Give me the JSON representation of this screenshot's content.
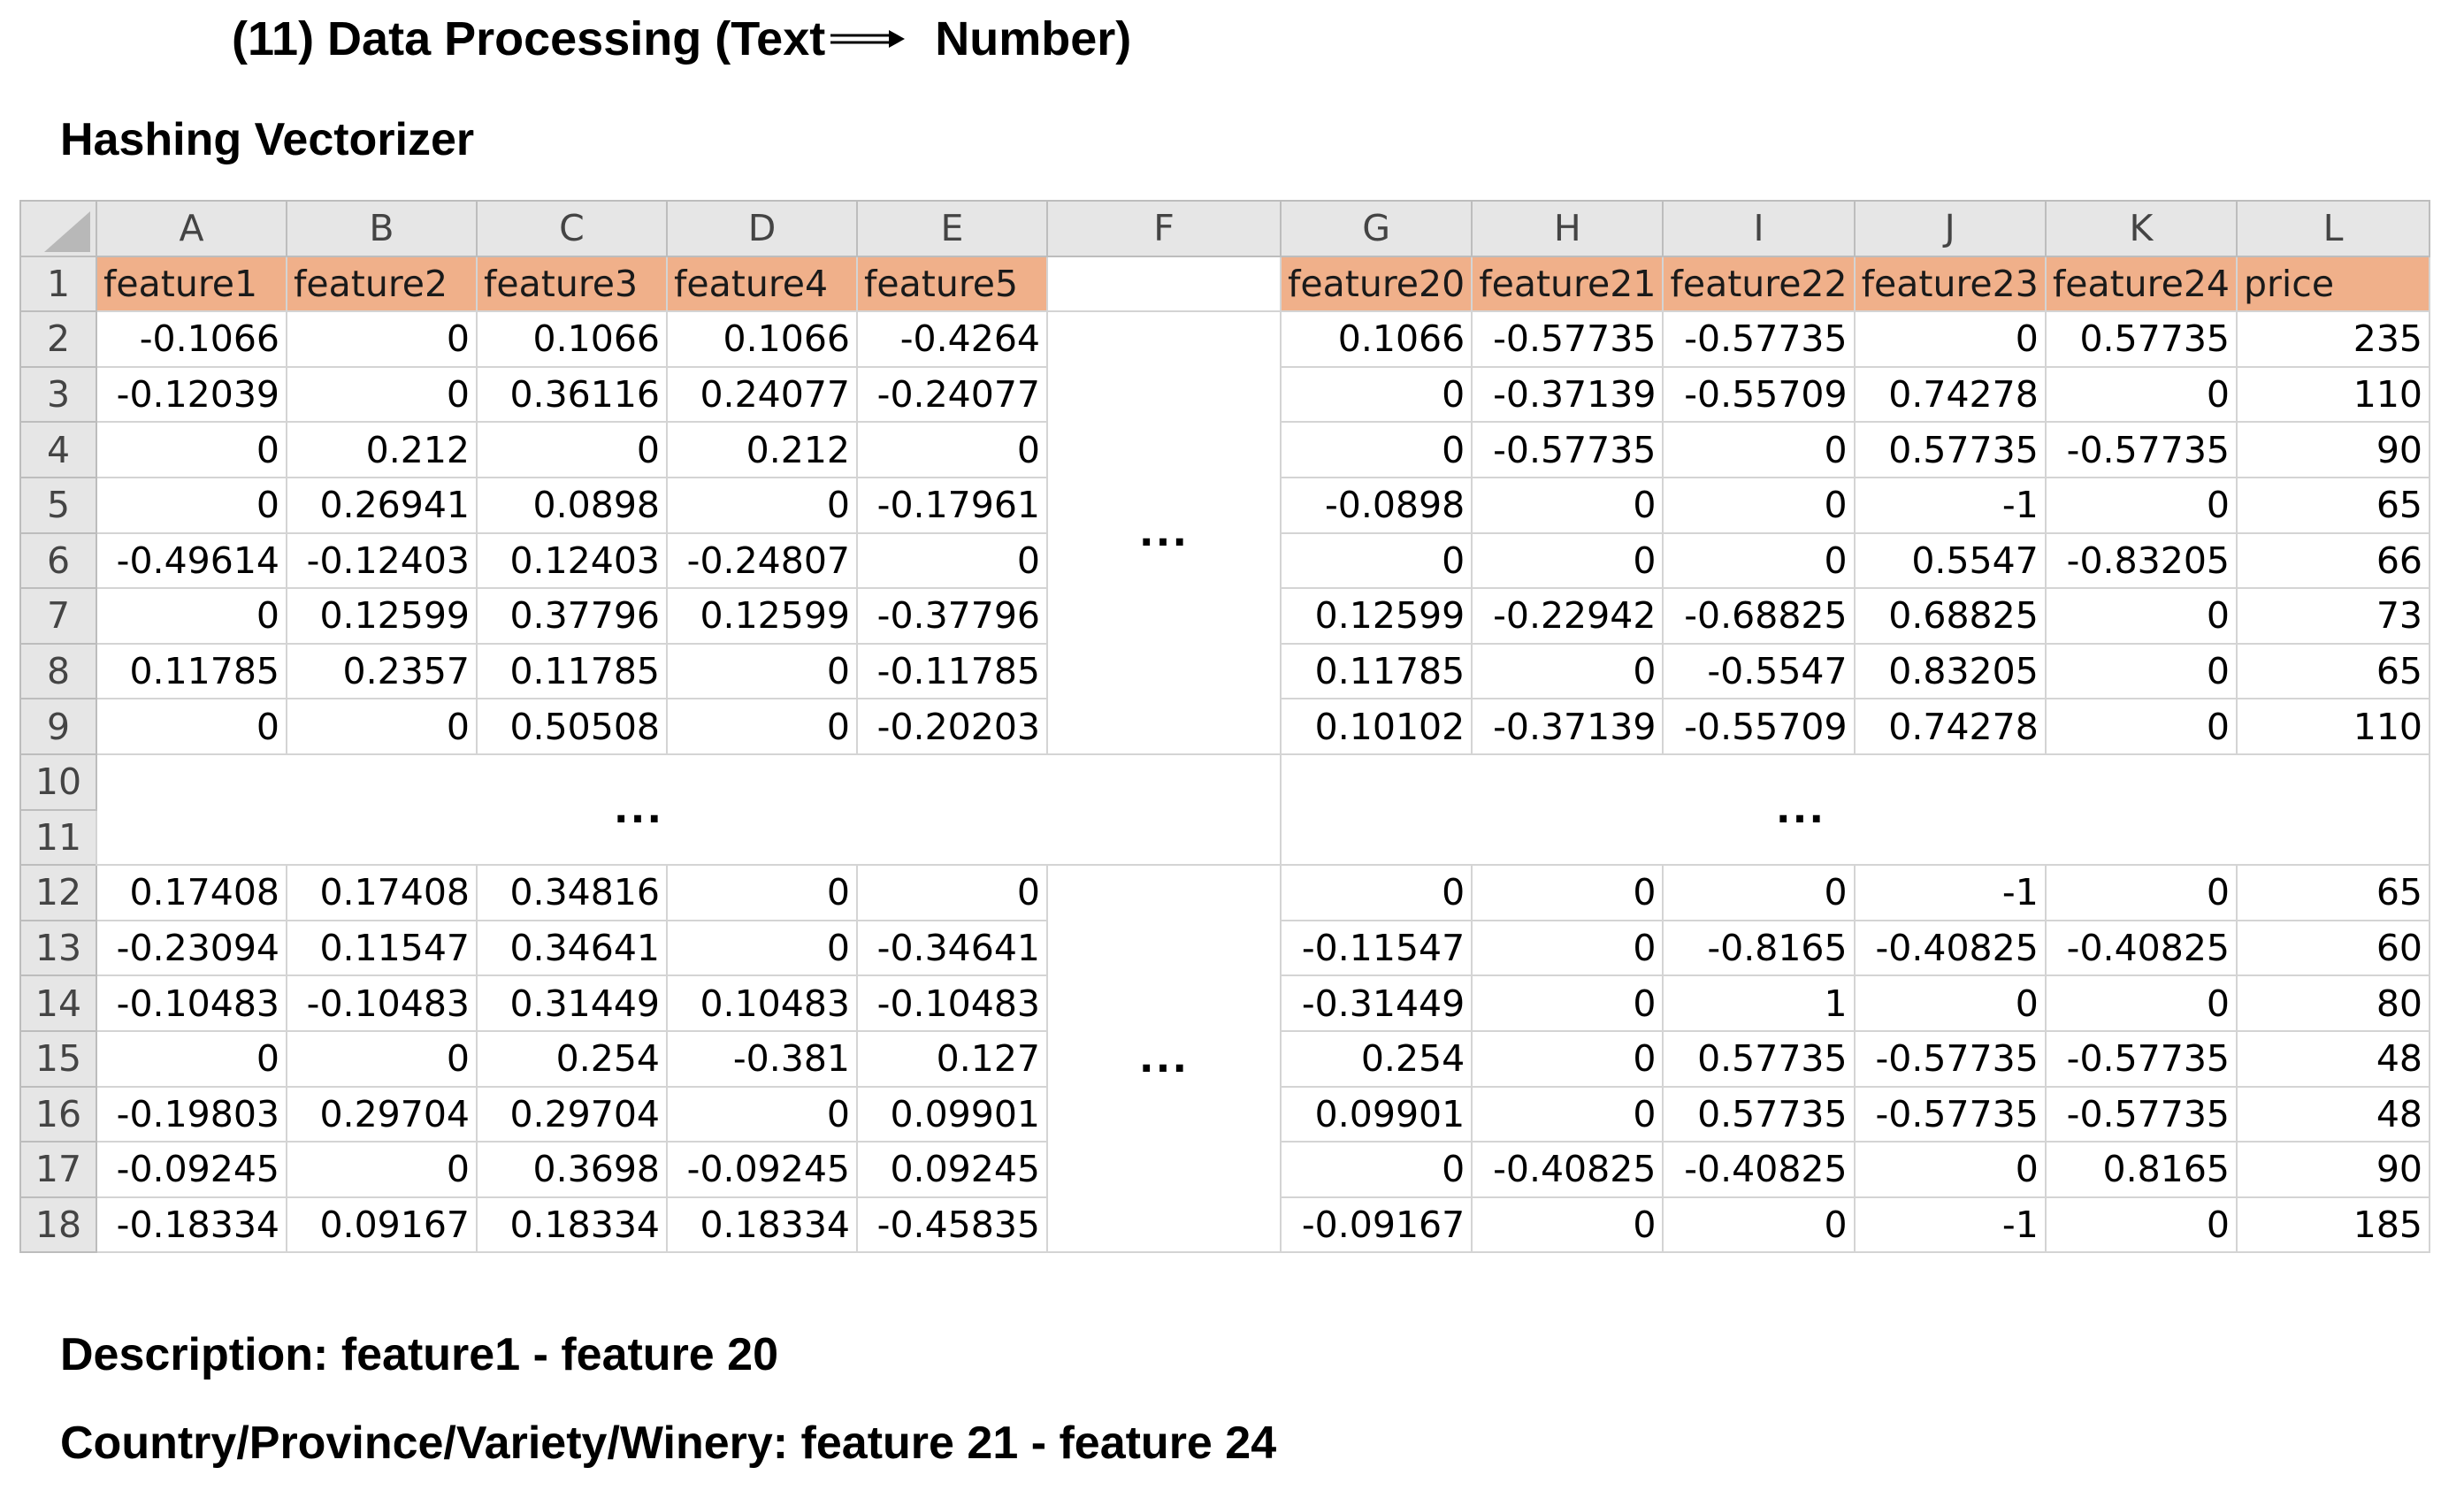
{
  "title": {
    "prefix": "(11) Data Processing (Text",
    "suffix": "Number)"
  },
  "subtitle": "Hashing Vectorizer",
  "columns": [
    "A",
    "B",
    "C",
    "D",
    "E",
    "F",
    "G",
    "H",
    "I",
    "J",
    "K",
    "L"
  ],
  "rows": [
    "1",
    "2",
    "3",
    "4",
    "5",
    "6",
    "7",
    "8",
    "9",
    "10",
    "11",
    "12",
    "13",
    "14",
    "15",
    "16",
    "17",
    "18"
  ],
  "headers": {
    "left": [
      "feature1",
      "feature2",
      "feature3",
      "feature4",
      "feature5"
    ],
    "right": [
      "feature20",
      "feature21",
      "feature22",
      "feature23",
      "feature24",
      "price"
    ]
  },
  "top_block": [
    {
      "left": [
        "-0.1066",
        "0",
        "0.1066",
        "0.1066",
        "-0.4264"
      ],
      "right": [
        "0.1066",
        "-0.57735",
        "-0.57735",
        "0",
        "0.57735",
        "235"
      ]
    },
    {
      "left": [
        "-0.12039",
        "0",
        "0.36116",
        "0.24077",
        "-0.24077"
      ],
      "right": [
        "0",
        "-0.37139",
        "-0.55709",
        "0.74278",
        "0",
        "110"
      ]
    },
    {
      "left": [
        "0",
        "0.212",
        "0",
        "0.212",
        "0"
      ],
      "right": [
        "0",
        "-0.57735",
        "0",
        "0.57735",
        "-0.57735",
        "90"
      ]
    },
    {
      "left": [
        "0",
        "0.26941",
        "0.0898",
        "0",
        "-0.17961"
      ],
      "right": [
        "-0.0898",
        "0",
        "0",
        "-1",
        "0",
        "65"
      ]
    },
    {
      "left": [
        "-0.49614",
        "-0.12403",
        "0.12403",
        "-0.24807",
        "0"
      ],
      "right": [
        "0",
        "0",
        "0",
        "0.5547",
        "-0.83205",
        "66"
      ]
    },
    {
      "left": [
        "0",
        "0.12599",
        "0.37796",
        "0.12599",
        "-0.37796"
      ],
      "right": [
        "0.12599",
        "-0.22942",
        "-0.68825",
        "0.68825",
        "0",
        "73"
      ]
    },
    {
      "left": [
        "0.11785",
        "0.2357",
        "0.11785",
        "0",
        "-0.11785"
      ],
      "right": [
        "0.11785",
        "0",
        "-0.5547",
        "0.83205",
        "0",
        "65"
      ]
    },
    {
      "left": [
        "0",
        "0",
        "0.50508",
        "0",
        "-0.20203"
      ],
      "right": [
        "0.10102",
        "-0.37139",
        "-0.55709",
        "0.74278",
        "0",
        "110"
      ]
    }
  ],
  "bottom_block": [
    {
      "left": [
        "0.17408",
        "0.17408",
        "0.34816",
        "0",
        "0"
      ],
      "right": [
        "0",
        "0",
        "0",
        "-1",
        "0",
        "65"
      ]
    },
    {
      "left": [
        "-0.23094",
        "0.11547",
        "0.34641",
        "0",
        "-0.34641"
      ],
      "right": [
        "-0.11547",
        "0",
        "-0.8165",
        "-0.40825",
        "-0.40825",
        "60"
      ]
    },
    {
      "left": [
        "-0.10483",
        "-0.10483",
        "0.31449",
        "0.10483",
        "-0.10483"
      ],
      "right": [
        "-0.31449",
        "0",
        "1",
        "0",
        "0",
        "80"
      ]
    },
    {
      "left": [
        "0",
        "0",
        "0.254",
        "-0.381",
        "0.127"
      ],
      "right": [
        "0.254",
        "0",
        "0.57735",
        "-0.57735",
        "-0.57735",
        "48"
      ]
    },
    {
      "left": [
        "-0.19803",
        "0.29704",
        "0.29704",
        "0",
        "0.09901"
      ],
      "right": [
        "0.09901",
        "0",
        "0.57735",
        "-0.57735",
        "-0.57735",
        "48"
      ]
    },
    {
      "left": [
        "-0.09245",
        "0",
        "0.3698",
        "-0.09245",
        "0.09245"
      ],
      "right": [
        "0",
        "-0.40825",
        "-0.40825",
        "0",
        "0.8165",
        "90"
      ]
    },
    {
      "left": [
        "-0.18334",
        "0.09167",
        "0.18334",
        "0.18334",
        "-0.45835"
      ],
      "right": [
        "-0.09167",
        "0",
        "0",
        "-1",
        "0",
        "185"
      ]
    }
  ],
  "ellipsis": "...",
  "description_1": "Description: feature1 - feature 20",
  "description_2": "Country/Province/Variety/Winery: feature 21 - feature 24"
}
